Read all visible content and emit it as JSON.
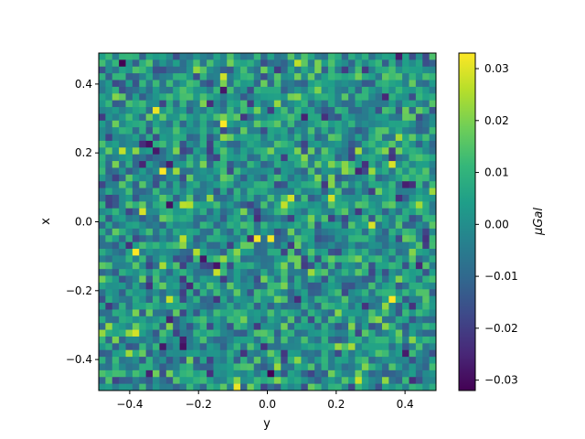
{
  "chart_data": {
    "type": "heatmap",
    "title": "",
    "xlabel": "y",
    "ylabel": "x",
    "xlim": [
      -0.49,
      0.49
    ],
    "ylim": [
      0.49,
      -0.49
    ],
    "y_axis_inverted": true,
    "grid": false,
    "xticks": [
      {
        "value": -0.4,
        "label": "−0.4"
      },
      {
        "value": -0.2,
        "label": "−0.2"
      },
      {
        "value": 0.0,
        "label": "0.0"
      },
      {
        "value": 0.2,
        "label": "0.2"
      },
      {
        "value": 0.4,
        "label": "0.4"
      }
    ],
    "yticks": [
      {
        "value": -0.4,
        "label": "−0.4"
      },
      {
        "value": -0.2,
        "label": "−0.2"
      },
      {
        "value": 0.0,
        "label": "0.0"
      },
      {
        "value": 0.2,
        "label": "0.2"
      },
      {
        "value": 0.4,
        "label": "0.4"
      }
    ],
    "colormap": "viridis",
    "colorbar": {
      "label": "μGal",
      "vmin": -0.032,
      "vmax": 0.033,
      "ticks": [
        {
          "value": 0.03,
          "label": "0.03"
        },
        {
          "value": 0.02,
          "label": "0.02"
        },
        {
          "value": 0.01,
          "label": "0.01"
        },
        {
          "value": 0.0,
          "label": "0.00"
        },
        {
          "value": -0.01,
          "label": "−0.01"
        },
        {
          "value": -0.02,
          "label": "−0.02"
        },
        {
          "value": -0.03,
          "label": "−0.03"
        }
      ]
    },
    "grid_size": [
      50,
      50
    ],
    "values_description_seed": 20240607
  }
}
